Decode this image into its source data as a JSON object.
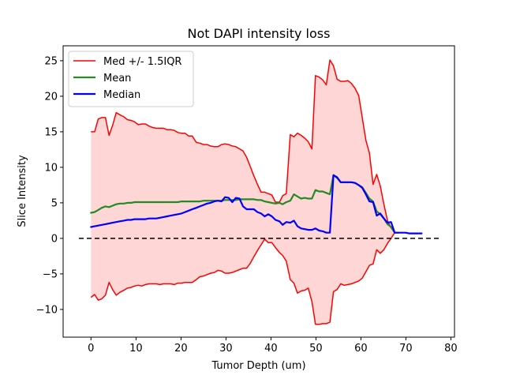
{
  "chart_data": {
    "type": "line",
    "title": "Not DAPI intensity loss",
    "xlabel": "Tumor Depth (um)",
    "ylabel": "Slice Intensity",
    "xlim": [
      -6.2,
      80.8
    ],
    "ylim": [
      -13.9,
      27.1
    ],
    "xticks": [
      0,
      10,
      20,
      30,
      40,
      50,
      60,
      70,
      80
    ],
    "yticks": [
      -10,
      -5,
      0,
      5,
      10,
      15,
      20,
      25
    ],
    "grid": false,
    "legend_position": "top-left",
    "colors": {
      "band_line": "#ff0000",
      "band_fill": "#ffd6d6",
      "mean": "#228b22",
      "median": "#0000ff",
      "reference": "#000000"
    },
    "reference_line": {
      "y": 0,
      "x_range": [
        -2.7,
        77.5
      ],
      "style": "dashed"
    },
    "band": {
      "name": "Med +/- 1.5IQR",
      "upper": {
        "x": [
          0,
          0.8,
          1.6,
          2.4,
          3.2,
          4.0,
          4.8,
          5.6,
          6.4,
          7.3,
          8.1,
          8.9,
          9.7,
          10.5,
          11.3,
          12.1,
          12.9,
          13.7,
          14.5,
          15.3,
          16.1,
          16.9,
          17.7,
          18.5,
          19.3,
          20.1,
          20.9,
          21.7,
          22.5,
          23.4,
          24.2,
          25.0,
          25.8,
          26.6,
          27.4,
          28.2,
          29.0,
          29.8,
          30.6,
          31.4,
          32.2,
          33.0,
          33.8,
          34.6,
          35.4,
          36.2,
          37.0,
          37.8,
          38.6,
          39.4,
          40.2,
          41.0,
          41.9,
          42.6,
          43.4,
          44.3,
          45.1,
          45.9,
          46.7,
          47.5,
          48.3,
          49.1,
          49.9,
          50.7,
          51.5,
          52.3,
          53.1,
          53.9,
          54.7,
          55.5,
          56.3,
          57.1,
          57.9,
          58.7,
          59.5,
          60.3,
          61.1,
          61.9,
          62.7,
          63.5,
          64.3,
          65.1,
          65.9,
          66.7,
          67.5,
          68.3
        ],
        "y": [
          15.0,
          15.0,
          16.8,
          17.0,
          17.0,
          14.5,
          15.9,
          17.7,
          17.4,
          17.1,
          16.7,
          16.6,
          16.4,
          16.0,
          16.1,
          16.1,
          15.8,
          15.6,
          15.5,
          15.5,
          15.5,
          15.3,
          15.3,
          15.2,
          14.9,
          14.8,
          14.8,
          14.4,
          14.4,
          13.5,
          13.4,
          13.2,
          13.2,
          13.0,
          12.9,
          12.9,
          13.2,
          13.3,
          13.2,
          13.0,
          12.9,
          12.6,
          12.3,
          11.4,
          10.1,
          8.8,
          7.6,
          6.5,
          6.5,
          6.3,
          6.1,
          5.1,
          5.1,
          6.0,
          6.3,
          14.6,
          14.3,
          14.8,
          14.5,
          14.1,
          13.6,
          12.6,
          22.9,
          22.7,
          22.3,
          21.6,
          25.1,
          24.3,
          22.4,
          22.1,
          22.1,
          22.2,
          21.8,
          21.1,
          20.1,
          17.0,
          13.8,
          12.0,
          7.6,
          9.0,
          7.4,
          4.8,
          2.5,
          1.5,
          0.8,
          0.8
        ]
      },
      "lower": {
        "x": [
          0,
          0.8,
          1.6,
          2.4,
          3.2,
          4.0,
          4.8,
          5.6,
          6.4,
          7.3,
          8.1,
          8.9,
          9.7,
          10.5,
          11.3,
          12.1,
          12.9,
          13.7,
          14.5,
          15.3,
          16.1,
          16.9,
          17.7,
          18.5,
          19.3,
          20.1,
          20.9,
          21.7,
          22.5,
          23.4,
          24.2,
          25.0,
          25.8,
          26.6,
          27.4,
          28.2,
          29.0,
          29.8,
          30.6,
          31.4,
          32.2,
          33.0,
          33.8,
          34.6,
          35.4,
          36.2,
          37.0,
          37.8,
          38.6,
          39.4,
          40.2,
          41.0,
          41.9,
          42.6,
          43.4,
          44.3,
          45.1,
          45.9,
          46.7,
          47.5,
          48.3,
          49.1,
          49.9,
          50.7,
          51.5,
          52.3,
          53.1,
          53.9,
          54.7,
          55.5,
          56.3,
          57.1,
          57.9,
          58.7,
          59.5,
          60.3,
          61.1,
          61.9,
          62.7,
          63.5,
          64.3,
          65.1,
          65.9,
          66.7,
          67.5,
          68.3
        ],
        "y": [
          -8.3,
          -7.9,
          -8.7,
          -8.5,
          -8.0,
          -6.2,
          -7.2,
          -8.0,
          -7.6,
          -7.3,
          -7.0,
          -6.9,
          -6.7,
          -6.6,
          -6.7,
          -6.5,
          -6.4,
          -6.4,
          -6.4,
          -6.5,
          -6.4,
          -6.4,
          -6.4,
          -6.5,
          -6.3,
          -6.3,
          -6.2,
          -6.2,
          -6.2,
          -5.8,
          -5.4,
          -5.3,
          -5.1,
          -4.9,
          -4.8,
          -4.5,
          -4.6,
          -4.9,
          -4.9,
          -4.8,
          -4.6,
          -4.4,
          -4.2,
          -4.2,
          -3.5,
          -2.6,
          -1.7,
          -0.9,
          -0.1,
          -0.6,
          -0.6,
          -1.3,
          -2.0,
          -2.4,
          -3.2,
          -5.8,
          -6.3,
          -7.7,
          -7.4,
          -7.3,
          -7.0,
          -8.9,
          -12.1,
          -12.1,
          -12.0,
          -12.0,
          -11.8,
          -7.5,
          -7.2,
          -6.4,
          -6.6,
          -6.5,
          -6.4,
          -6.2,
          -6.0,
          -5.6,
          -4.7,
          -3.8,
          -3.6,
          -1.6,
          -2.1,
          -1.6,
          -0.7,
          0.0,
          0.8,
          0.8
        ]
      }
    },
    "series": [
      {
        "name": "Mean",
        "color": "#228b22",
        "x": [
          0,
          0.8,
          1.6,
          2.4,
          3.2,
          4.0,
          4.8,
          5.6,
          6.4,
          7.3,
          8.1,
          8.9,
          9.7,
          10.5,
          11.3,
          12.1,
          12.9,
          13.7,
          14.5,
          15.3,
          16.1,
          16.9,
          17.7,
          18.5,
          19.3,
          20.1,
          20.9,
          21.7,
          22.5,
          23.4,
          24.2,
          25.0,
          25.8,
          26.6,
          27.4,
          28.2,
          29.0,
          29.8,
          30.6,
          31.4,
          32.2,
          33.0,
          33.8,
          34.6,
          35.4,
          36.2,
          37.0,
          37.8,
          38.6,
          39.4,
          40.2,
          41.0,
          41.9,
          42.6,
          43.4,
          44.3,
          45.1,
          45.9,
          46.7,
          47.5,
          48.3,
          49.1,
          49.9,
          50.7,
          51.5,
          52.3,
          53.1,
          53.9,
          54.7,
          55.5,
          56.3,
          57.1,
          57.9,
          58.7,
          59.5,
          60.3,
          61.1,
          61.9,
          62.7,
          63.5,
          64.3,
          65.1,
          65.9,
          66.7,
          67.5,
          68.3
        ],
        "y": [
          3.6,
          3.7,
          4.0,
          4.3,
          4.5,
          4.4,
          4.6,
          4.8,
          4.9,
          4.9,
          5.0,
          5.0,
          5.1,
          5.1,
          5.1,
          5.1,
          5.1,
          5.1,
          5.1,
          5.1,
          5.1,
          5.1,
          5.1,
          5.1,
          5.1,
          5.2,
          5.2,
          5.2,
          5.2,
          5.2,
          5.2,
          5.3,
          5.3,
          5.3,
          5.3,
          5.3,
          5.3,
          5.4,
          5.4,
          5.4,
          5.4,
          5.5,
          5.5,
          5.5,
          5.5,
          5.5,
          5.4,
          5.4,
          5.2,
          5.1,
          5.0,
          4.9,
          5.0,
          4.8,
          5.1,
          5.3,
          6.2,
          5.9,
          5.6,
          5.7,
          5.6,
          5.6,
          6.8,
          6.6,
          6.6,
          6.4,
          6.2,
          8.9,
          8.5,
          7.9,
          7.9,
          7.9,
          7.9,
          7.8,
          7.5,
          7.2,
          6.4,
          5.6,
          5.2,
          3.8,
          3.4,
          2.8,
          2.0,
          1.6,
          0.8,
          0.8
        ]
      },
      {
        "name": "Median",
        "color": "#0000ff",
        "x": [
          0,
          0.8,
          1.6,
          2.4,
          3.2,
          4.0,
          4.8,
          5.6,
          6.4,
          7.3,
          8.1,
          8.9,
          9.7,
          10.5,
          11.3,
          12.1,
          12.9,
          13.7,
          14.5,
          15.3,
          16.1,
          16.9,
          17.7,
          18.5,
          19.3,
          20.1,
          20.9,
          21.7,
          22.5,
          23.4,
          24.2,
          25.0,
          25.8,
          26.6,
          27.4,
          28.2,
          29.0,
          29.8,
          30.6,
          31.4,
          32.2,
          33.0,
          33.8,
          34.6,
          35.4,
          36.2,
          37.0,
          37.8,
          38.6,
          39.4,
          40.2,
          41.0,
          41.9,
          42.6,
          43.4,
          44.3,
          45.1,
          45.9,
          46.7,
          47.5,
          48.3,
          49.1,
          49.9,
          50.7,
          51.5,
          52.3,
          53.1,
          53.9,
          54.7,
          55.5,
          56.3,
          57.1,
          57.9,
          58.7,
          59.5,
          60.3,
          61.1,
          61.9,
          62.7,
          63.5,
          64.3,
          65.1,
          65.9,
          66.7,
          67.5,
          68.3,
          69.1,
          69.9,
          70.7,
          71.5,
          72.3,
          73.1,
          73.5
        ],
        "y": [
          1.6,
          1.7,
          1.8,
          1.9,
          2.0,
          2.1,
          2.2,
          2.3,
          2.4,
          2.5,
          2.6,
          2.6,
          2.7,
          2.7,
          2.7,
          2.7,
          2.8,
          2.8,
          2.8,
          2.9,
          3.0,
          3.1,
          3.2,
          3.3,
          3.4,
          3.5,
          3.7,
          3.9,
          4.1,
          4.3,
          4.5,
          4.7,
          4.9,
          5.0,
          5.2,
          5.3,
          5.2,
          5.8,
          5.7,
          5.1,
          5.7,
          5.6,
          4.5,
          4.1,
          4.1,
          4.1,
          3.7,
          3.5,
          3.1,
          3.4,
          3.1,
          2.6,
          2.4,
          1.9,
          2.3,
          2.2,
          2.5,
          1.7,
          1.4,
          1.3,
          1.2,
          1.2,
          1.4,
          1.1,
          1.0,
          0.8,
          0.8,
          8.9,
          8.6,
          7.9,
          7.9,
          7.9,
          7.9,
          7.8,
          7.5,
          7.1,
          6.2,
          5.2,
          5.1,
          3.2,
          3.5,
          2.8,
          2.2,
          2.3,
          0.8,
          0.8,
          0.8,
          0.8,
          0.7,
          0.7,
          0.7,
          0.7,
          0.7
        ]
      }
    ]
  }
}
